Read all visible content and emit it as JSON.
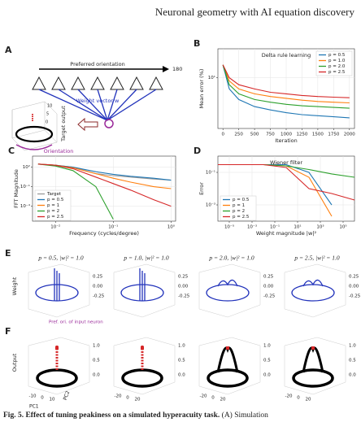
{
  "header": {
    "title": "Neuronal geometry with AI equation discovery"
  },
  "panel_a": {
    "label": "A",
    "arrow_label": "Preferred orientation",
    "arrow_end": "180",
    "weight_label": "Weight vector w",
    "target_label": "Target output",
    "orientation_label": "Orientation",
    "z_ticks": [
      "10",
      "5",
      "0"
    ]
  },
  "panel_b": {
    "label": "B",
    "type": "line",
    "title": "Delta rule learning",
    "xlabel": "Iteration",
    "ylabel": "Mean error (%)",
    "log_y": true,
    "grid": true,
    "x": [
      0,
      100,
      250,
      500,
      750,
      1000,
      1250,
      1500,
      1750,
      2000
    ],
    "xlim": [
      -80,
      2080
    ],
    "xticks": [
      0,
      250,
      500,
      750,
      1000,
      1250,
      1500,
      1750,
      2000
    ],
    "ylim": [
      2,
      25
    ],
    "yticks": [
      {
        "value": 10,
        "label": "10¹"
      }
    ],
    "legend": "upper right",
    "series": [
      {
        "name": "p = 0.5",
        "color": "#1f77b4",
        "values": [
          15,
          7,
          5,
          4,
          3.6,
          3.3,
          3.1,
          3,
          2.9,
          2.8
        ]
      },
      {
        "name": "p = 1.0",
        "color": "#ff7f0e",
        "values": [
          15,
          9,
          7,
          6,
          5.5,
          5.2,
          4.9,
          4.7,
          4.6,
          4.5
        ]
      },
      {
        "name": "p = 2.0",
        "color": "#2ca02c",
        "values": [
          15,
          8,
          6,
          5,
          4.6,
          4.3,
          4.1,
          4,
          3.9,
          3.8
        ]
      },
      {
        "name": "p = 2.5",
        "color": "#d62728",
        "values": [
          15,
          10,
          8,
          7,
          6.3,
          6,
          5.7,
          5.5,
          5.4,
          5.3
        ]
      }
    ]
  },
  "panel_c": {
    "label": "C",
    "type": "line",
    "xlabel": "Frequency (cycles/degree)",
    "ylabel": "FFT Magnitude",
    "log_x": true,
    "log_y": true,
    "grid": true,
    "x": [
      0.005,
      0.01,
      0.02,
      0.05,
      0.1,
      0.2,
      0.5,
      1
    ],
    "xlim": [
      0.004,
      1.2
    ],
    "xticks": [
      {
        "value": 0.01,
        "label": "10⁻²"
      },
      {
        "value": 0.1,
        "label": "10⁻¹"
      },
      {
        "value": 1,
        "label": "10⁰"
      }
    ],
    "ylim": [
      5e-07,
      5000
    ],
    "yticks": [
      {
        "value": 100,
        "label": "10²"
      },
      {
        "value": 0.1,
        "label": "10⁻¹"
      },
      {
        "value": 0.0001,
        "label": "10⁻⁴"
      }
    ],
    "legend": "lower left",
    "series": [
      {
        "name": "Target",
        "color": "#999999",
        "values": [
          300,
          200,
          100,
          10,
          5,
          3,
          1.5,
          1
        ]
      },
      {
        "name": "p = 0.5",
        "color": "#1f77b4",
        "values": [
          300,
          200,
          100,
          20,
          8,
          4,
          2,
          1
        ]
      },
      {
        "name": "p = 1",
        "color": "#ff7f0e",
        "values": [
          300,
          200,
          80,
          10,
          2,
          0.5,
          0.1,
          0.05
        ]
      },
      {
        "name": "p = 2",
        "color": "#2ca02c",
        "values": [
          300,
          150,
          30,
          0.1,
          1e-06,
          null,
          null,
          null
        ]
      },
      {
        "name": "p = 2.5",
        "color": "#d62728",
        "values": [
          300,
          200,
          60,
          3,
          0.3,
          0.03,
          0.001,
          0.0001
        ]
      }
    ]
  },
  "panel_d": {
    "label": "D",
    "type": "line",
    "title": "Wiener filter",
    "xlabel": "Weight magnitude |w|²",
    "ylabel": "Error",
    "log_x": true,
    "log_y": true,
    "grid": true,
    "x": [
      1e-06,
      0.0001,
      0.01,
      1,
      100,
      10000,
      1000000
    ],
    "xlim": [
      1e-06,
      1000000
    ],
    "xticks": [
      {
        "value": 1e-05,
        "label": "10⁻⁵"
      },
      {
        "value": 0.001,
        "label": "10⁻³"
      },
      {
        "value": 0.1,
        "label": "10⁻¹"
      },
      {
        "value": 10,
        "label": "10¹"
      },
      {
        "value": 1000,
        "label": "10³"
      },
      {
        "value": 100000,
        "label": "10⁵"
      }
    ],
    "ylim": [
      0.0001,
      1
    ],
    "yticks": [
      {
        "value": 0.1,
        "label": "10⁻¹"
      },
      {
        "value": 0.001,
        "label": "10⁻³"
      }
    ],
    "legend": "lower left",
    "series": [
      {
        "name": "p = 0.5",
        "color": "#1f77b4",
        "values": [
          0.3,
          0.3,
          0.3,
          0.3,
          0.1,
          0.001,
          null
        ]
      },
      {
        "name": "p = 1",
        "color": "#ff7f0e",
        "values": [
          0.3,
          0.3,
          0.3,
          0.25,
          0.05,
          0.0002,
          null
        ]
      },
      {
        "name": "p = 2",
        "color": "#2ca02c",
        "values": [
          0.3,
          0.3,
          0.3,
          0.25,
          0.15,
          0.08,
          0.05
        ]
      },
      {
        "name": "p = 2.5",
        "color": "#d62728",
        "values": [
          0.3,
          0.3,
          0.3,
          0.2,
          0.01,
          0.005,
          0.002
        ]
      }
    ]
  },
  "panel_e": {
    "label": "E",
    "ylabel": "Weight",
    "titles": [
      "p = 0.5, |w|² = 1.0",
      "p = 1.0, |w|² = 1.0",
      "p = 2.0, |w|² = 1.0",
      "p = 2.5, |w|² = 1.0"
    ],
    "ticks": [
      "0.25",
      "0.00",
      "-0.25"
    ],
    "note": "Pref. ori. of input neuron"
  },
  "panel_f": {
    "label": "F",
    "ylabel": "Output",
    "ticks": [
      "1.0",
      "0.5",
      "0.0"
    ],
    "pc1": "PC1",
    "pc2": "PC2",
    "pc1_ticks": [
      "-10",
      "0",
      "10"
    ],
    "pc2_ticks": [
      "-20",
      "0",
      "20"
    ]
  },
  "caption": {
    "bold": "Fig. 5. Effect of tuning peakiness on a simulated hyperacuity task.",
    "rest": " (A) Simulation"
  }
}
